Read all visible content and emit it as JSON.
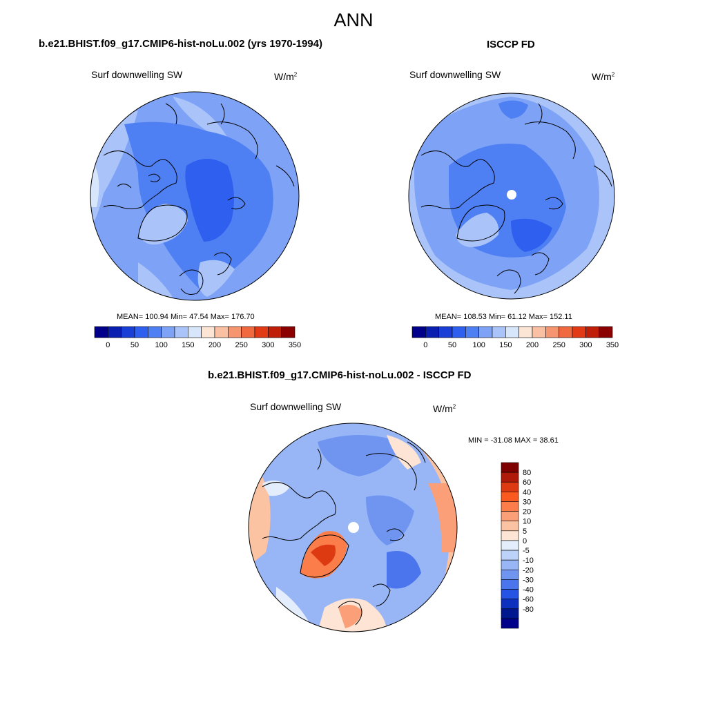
{
  "title": "ANN",
  "panels": [
    {
      "title": "b.e21.BHIST.f09_g17.CMIP6-hist-noLu.002 (yrs 1970-1994)",
      "variable": "Surf downwelling SW",
      "units_base": "W/m",
      "units_exp": "2",
      "stats": "MEAN= 100.94  Min=  47.54  Max= 176.70",
      "mean": 100.94,
      "min": 47.54,
      "max": 176.7,
      "colorbar_ticks": [
        "0",
        "50",
        "100",
        "150",
        "200",
        "250",
        "300",
        "350"
      ]
    },
    {
      "title": "ISCCP FD",
      "variable": "Surf downwelling SW",
      "units_base": "W/m",
      "units_exp": "2",
      "stats": "MEAN= 108.53  Min=  61.12  Max= 152.11",
      "mean": 108.53,
      "min": 61.12,
      "max": 152.11,
      "colorbar_ticks": [
        "0",
        "50",
        "100",
        "150",
        "200",
        "250",
        "300",
        "350"
      ]
    },
    {
      "title": "b.e21.BHIST.f09_g17.CMIP6-hist-noLu.002 - ISCCP FD",
      "variable": "Surf downwelling SW",
      "units_base": "W/m",
      "units_exp": "2",
      "stats": "MIN = -31.08 MAX =  38.61",
      "min": -31.08,
      "max": 38.61,
      "colorbar_ticks": [
        "80",
        "60",
        "40",
        "30",
        "20",
        "10",
        "5",
        "0",
        "-5",
        "-10",
        "-20",
        "-30",
        "-40",
        "-60",
        "-80"
      ]
    }
  ],
  "colors": {
    "abs_scale": [
      "#00008b",
      "#0a1fb0",
      "#1a3fd6",
      "#2f5fee",
      "#4f80f3",
      "#7ea3f6",
      "#aac4fa",
      "#d8e6fc",
      "#fde5d6",
      "#f9c0a3",
      "#f59670",
      "#f16a3f",
      "#e33a16",
      "#bf1e09",
      "#8b0000"
    ],
    "diff_scale": [
      "#7f0000",
      "#b01a0a",
      "#de3a12",
      "#fb5a1e",
      "#fc7d4a",
      "#fb9f78",
      "#fcc3a3",
      "#fde4d4",
      "#e3edfb",
      "#bcd2f9",
      "#98b6f6",
      "#6f95f1",
      "#4a75ec",
      "#2553e3",
      "#0c31bf",
      "#00188f",
      "#00008b"
    ]
  }
}
